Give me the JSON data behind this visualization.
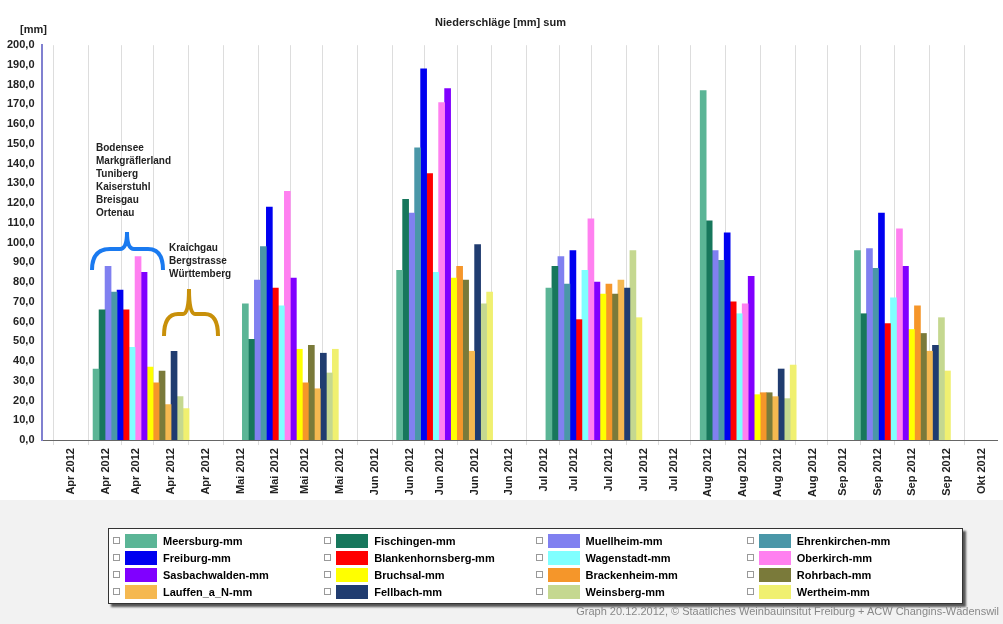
{
  "chart_data": {
    "type": "bar",
    "title": "Niederschläge [mm] sum",
    "ylabel": "[mm]",
    "x": [
      "2012-04-15",
      "2012-05-15",
      "2012-06-15",
      "2012-07-15",
      "2012-08-15",
      "2012-09-15"
    ],
    "xlim": [
      "2012-03-26",
      "2012-10-04"
    ],
    "xticks": [
      {
        "value": "2012-04-01",
        "label": "Apr 2012"
      },
      {
        "value": "2012-04-08",
        "label": "Apr 2012"
      },
      {
        "value": "2012-04-14",
        "label": "Apr 2012"
      },
      {
        "value": "2012-04-21",
        "label": "Apr 2012"
      },
      {
        "value": "2012-04-28",
        "label": "Apr 2012"
      },
      {
        "value": "2012-05-05",
        "label": "Mai 2012"
      },
      {
        "value": "2012-05-12",
        "label": "Mai 2012"
      },
      {
        "value": "2012-05-18",
        "label": "Mai 2012"
      },
      {
        "value": "2012-05-25",
        "label": "Mai 2012"
      },
      {
        "value": "2012-06-01",
        "label": "Jun 2012"
      },
      {
        "value": "2012-06-08",
        "label": "Jun 2012"
      },
      {
        "value": "2012-06-14",
        "label": "Jun 2012"
      },
      {
        "value": "2012-06-21",
        "label": "Jun 2012"
      },
      {
        "value": "2012-06-28",
        "label": "Jun 2012"
      },
      {
        "value": "2012-07-05",
        "label": "Jul 2012"
      },
      {
        "value": "2012-07-11",
        "label": "Jul 2012"
      },
      {
        "value": "2012-07-18",
        "label": "Jul 2012"
      },
      {
        "value": "2012-07-25",
        "label": "Jul 2012"
      },
      {
        "value": "2012-07-31",
        "label": "Jul 2012"
      },
      {
        "value": "2012-08-07",
        "label": "Aug 2012"
      },
      {
        "value": "2012-08-14",
        "label": "Aug 2012"
      },
      {
        "value": "2012-08-21",
        "label": "Aug 2012"
      },
      {
        "value": "2012-08-28",
        "label": "Aug 2012"
      },
      {
        "value": "2012-09-03",
        "label": "Sep 2012"
      },
      {
        "value": "2012-09-10",
        "label": "Sep 2012"
      },
      {
        "value": "2012-09-17",
        "label": "Sep 2012"
      },
      {
        "value": "2012-09-24",
        "label": "Sep 2012"
      },
      {
        "value": "2012-10-01",
        "label": "Okt 2012"
      }
    ],
    "ylim": [
      0,
      200
    ],
    "yticks": [
      {
        "value": 0,
        "label": "0,0"
      },
      {
        "value": 10,
        "label": "10,0"
      },
      {
        "value": 20,
        "label": "20,0"
      },
      {
        "value": 30,
        "label": "30,0"
      },
      {
        "value": 40,
        "label": "40,0"
      },
      {
        "value": 50,
        "label": "50,0"
      },
      {
        "value": 60,
        "label": "60,0"
      },
      {
        "value": 70,
        "label": "70,0"
      },
      {
        "value": 80,
        "label": "80,0"
      },
      {
        "value": 90,
        "label": "90,0"
      },
      {
        "value": 100,
        "label": "100,0"
      },
      {
        "value": 110,
        "label": "110,0"
      },
      {
        "value": 120,
        "label": "120,0"
      },
      {
        "value": 130,
        "label": "130,0"
      },
      {
        "value": 140,
        "label": "140,0"
      },
      {
        "value": 150,
        "label": "150,0"
      },
      {
        "value": 160,
        "label": "160,0"
      },
      {
        "value": 170,
        "label": "170,0"
      },
      {
        "value": 180,
        "label": "180,0"
      },
      {
        "value": 190,
        "label": "190,0"
      },
      {
        "value": 200,
        "label": "200,0"
      }
    ],
    "grid": "x",
    "legend": "bottom",
    "series": [
      {
        "name": "Meersburg-mm",
        "color": "#5bb596",
        "values": [
          36,
          69,
          86,
          77,
          177,
          96
        ]
      },
      {
        "name": "Fischingen-mm",
        "color": "#17775c",
        "values": [
          66,
          51,
          122,
          88,
          111,
          64
        ]
      },
      {
        "name": "Muellheim-mm",
        "color": "#8080f0",
        "values": [
          88,
          81,
          115,
          93,
          96,
          97
        ]
      },
      {
        "name": "Ehrenkirchen-mm",
        "color": "#4a97a8",
        "values": [
          75,
          98,
          148,
          79,
          91,
          87
        ]
      },
      {
        "name": "Freiburg-mm",
        "color": "#0000f0",
        "values": [
          76,
          118,
          188,
          96,
          105,
          115
        ]
      },
      {
        "name": "Blankenhornsberg-mm",
        "color": "#ff0000",
        "values": [
          66,
          77,
          135,
          61,
          70,
          59
        ]
      },
      {
        "name": "Wagenstadt-mm",
        "color": "#80ffff",
        "values": [
          47,
          68,
          85,
          86,
          64,
          72
        ]
      },
      {
        "name": "Oberkirch-mm",
        "color": "#ff80f0",
        "values": [
          93,
          126,
          171,
          112,
          69,
          107
        ]
      },
      {
        "name": "Sasbachwalden-mm",
        "color": "#8000ff",
        "values": [
          85,
          82,
          178,
          80,
          83,
          88
        ]
      },
      {
        "name": "Bruchsal-mm",
        "color": "#ffff00",
        "values": [
          37,
          46,
          82,
          74,
          23,
          56
        ]
      },
      {
        "name": "Brackenheim-mm",
        "color": "#f5962a",
        "values": [
          29,
          29,
          88,
          79,
          24,
          68
        ]
      },
      {
        "name": "Rohrbach-mm",
        "color": "#7a7a3a",
        "values": [
          35,
          48,
          81,
          74,
          24,
          54
        ]
      },
      {
        "name": "Lauffen_a_N-mm",
        "color": "#f5b850",
        "values": [
          18,
          26,
          45,
          81,
          22,
          45
        ]
      },
      {
        "name": "Fellbach-mm",
        "color": "#203c70",
        "values": [
          45,
          44,
          99,
          77,
          36,
          48
        ]
      },
      {
        "name": "Weinsberg-mm",
        "color": "#c5d890",
        "values": [
          22,
          34,
          69,
          96,
          21,
          62
        ]
      },
      {
        "name": "Wertheim-mm",
        "color": "#f0f070",
        "values": [
          16,
          46,
          75,
          62,
          38,
          35
        ]
      }
    ],
    "annotations": [
      "Bodensee\nMarkgräflerland\nTuniberg\nKaiserstuhl\nBreisgau\nOrtenau",
      "Kraichgau\nBergstrasse\nWürttemberg",
      "Graph 20.12.2012, © Staatliches Weinbauinsitut Freiburg + ACW Changins-Wädenswil"
    ]
  }
}
